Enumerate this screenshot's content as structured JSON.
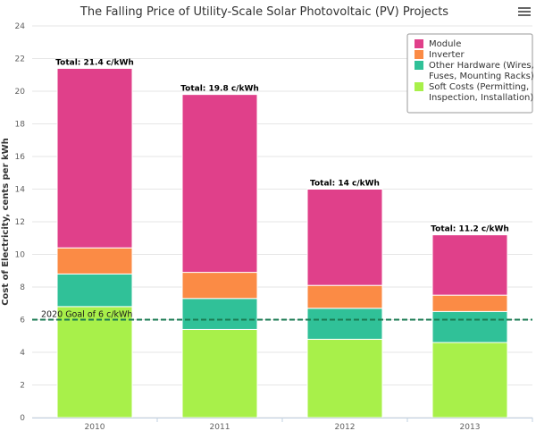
{
  "menu_icon": "hamburger-menu-icon",
  "chart_data": {
    "type": "bar",
    "stacked": true,
    "title": "The Falling Price of Utility-Scale Solar Photovoltaic (PV) Projects",
    "ylabel": "Cost of Electricity, cents per kWh",
    "xlabel": "",
    "ylim": [
      0,
      24
    ],
    "yticks": [
      0,
      2,
      4,
      6,
      8,
      10,
      12,
      14,
      16,
      18,
      20,
      22,
      24
    ],
    "grid": true,
    "legend_position": "top-right",
    "categories": [
      "2010",
      "2011",
      "2012",
      "2013"
    ],
    "series": [
      {
        "name": "Soft Costs (Permitting, Inspection, Installation)",
        "legend_lines": [
          "Soft Costs (Permitting,",
          "Inspection, Installation)"
        ],
        "color": "#a8f04a",
        "values": [
          6.8,
          5.4,
          4.8,
          4.6
        ]
      },
      {
        "name": "Other Hardware (Wires, Fuses, Mounting Racks)",
        "legend_lines": [
          "Other Hardware (Wires,",
          "Fuses, Mounting Racks)"
        ],
        "color": "#30c198",
        "values": [
          2.0,
          1.9,
          1.9,
          1.9
        ]
      },
      {
        "name": "Inverter",
        "legend_lines": [
          "Inverter"
        ],
        "color": "#fb8b45",
        "values": [
          1.6,
          1.6,
          1.4,
          1.0
        ]
      },
      {
        "name": "Module",
        "legend_lines": [
          "Module"
        ],
        "color": "#e0408a",
        "values": [
          11.0,
          10.9,
          5.9,
          3.7
        ]
      }
    ],
    "legend_order": [
      3,
      2,
      1,
      0
    ],
    "totals": [
      "Total: 21.4 c/kWh",
      "Total: 19.8 c/kWh",
      "Total: 14 c/kWh",
      "Total: 11.2 c/kWh"
    ],
    "goal": {
      "value": 6,
      "label": "2020 Goal of 6 c/kWh",
      "color": "#1a7a52"
    }
  }
}
